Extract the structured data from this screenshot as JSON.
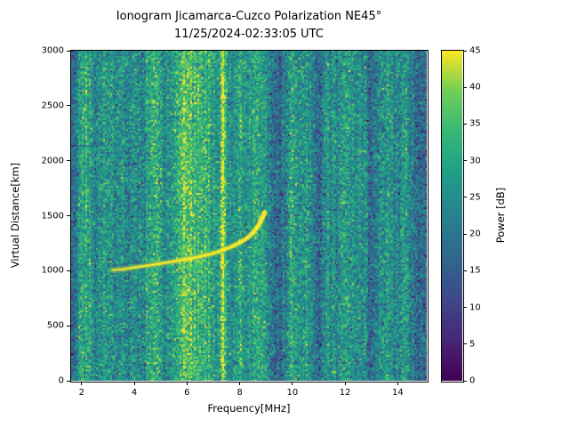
{
  "chart_data": {
    "type": "heatmap",
    "title": "Ionogram Jicamarca-Cuzco Polarization NE45°",
    "subtitle": "11/25/2024-02:33:05 UTC",
    "xlabel": "Frequency[MHz]",
    "ylabel": "Virtual Distance[km]",
    "colorbar_label": "Power [dB]",
    "colormap": "viridis",
    "xlim": [
      1.6,
      15.1
    ],
    "ylim": [
      0,
      3000
    ],
    "clim": [
      0,
      45
    ],
    "x_ticks": [
      2,
      4,
      6,
      8,
      10,
      12,
      14
    ],
    "y_ticks": [
      0,
      500,
      1000,
      1500,
      2000,
      2500,
      3000
    ],
    "colorbar_ticks": [
      0,
      5,
      10,
      15,
      20,
      25,
      30,
      35,
      40,
      45
    ],
    "background_mean_db": 22,
    "background_std_db": 5.5,
    "interference_bands": [
      {
        "freq": 2.15,
        "width": 0.45,
        "boost": 9
      },
      {
        "freq": 3.0,
        "width": 0.3,
        "boost": 6
      },
      {
        "freq": 3.5,
        "width": 0.2,
        "boost": 3
      },
      {
        "freq": 4.0,
        "width": 0.25,
        "boost": 4
      },
      {
        "freq": 4.75,
        "width": 0.45,
        "boost": 10
      },
      {
        "freq": 5.3,
        "width": 0.2,
        "boost": 4
      },
      {
        "freq": 5.85,
        "width": 0.5,
        "boost": 11
      },
      {
        "freq": 6.6,
        "width": 0.9,
        "boost": 11
      },
      {
        "freq": 7.37,
        "width": 0.12,
        "boost": 22
      },
      {
        "freq": 7.95,
        "width": 0.3,
        "boost": 6
      },
      {
        "freq": 8.7,
        "width": 0.55,
        "boost": 9
      },
      {
        "freq": 10.0,
        "width": 0.35,
        "boost": 7
      },
      {
        "freq": 10.6,
        "width": 0.3,
        "boost": 6
      },
      {
        "freq": 11.35,
        "width": 0.25,
        "boost": 4
      },
      {
        "freq": 12.05,
        "width": 0.35,
        "boost": 7
      },
      {
        "freq": 12.6,
        "width": 0.3,
        "boost": 5
      },
      {
        "freq": 13.5,
        "width": 0.35,
        "boost": 5
      },
      {
        "freq": 14.3,
        "width": 0.4,
        "boost": 6
      },
      {
        "freq": 1.7,
        "width": 0.25,
        "boost": -4
      },
      {
        "freq": 9.45,
        "width": 0.55,
        "boost": -5
      },
      {
        "freq": 11.0,
        "width": 0.3,
        "boost": -4
      },
      {
        "freq": 13.05,
        "width": 0.25,
        "boost": -3
      },
      {
        "freq": 14.8,
        "width": 0.45,
        "boost": -5
      }
    ],
    "echo_trace": {
      "power_db": 45,
      "points": [
        [
          3.2,
          1005
        ],
        [
          3.6,
          1015
        ],
        [
          4.0,
          1030
        ],
        [
          4.5,
          1048
        ],
        [
          5.0,
          1065
        ],
        [
          5.5,
          1085
        ],
        [
          6.0,
          1105
        ],
        [
          6.5,
          1130
        ],
        [
          7.0,
          1158
        ],
        [
          7.4,
          1190
        ],
        [
          7.7,
          1220
        ],
        [
          8.0,
          1255
        ],
        [
          8.3,
          1300
        ],
        [
          8.5,
          1345
        ],
        [
          8.65,
          1390
        ],
        [
          8.78,
          1440
        ],
        [
          8.87,
          1490
        ],
        [
          8.95,
          1530
        ]
      ]
    }
  }
}
